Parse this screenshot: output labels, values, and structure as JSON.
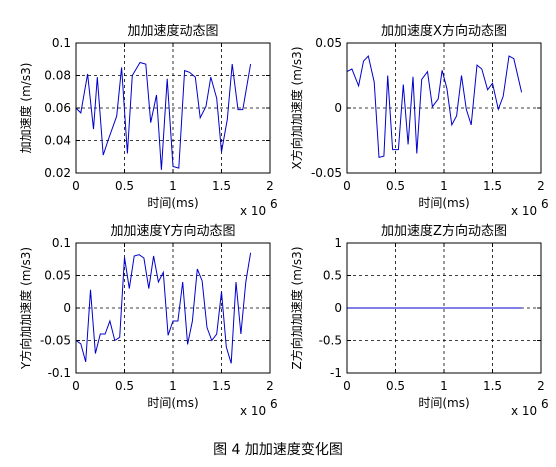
{
  "caption": "图 4  加加速度变化图",
  "chart_data": [
    {
      "type": "line",
      "title": "加加速度动态图",
      "xlabel": "时间(ms)",
      "ylabel": "加加速度 (m/s3)",
      "x_multiplier_label": "x 10",
      "x_multiplier_exp": "6",
      "xlim": [
        0,
        2
      ],
      "ylim": [
        0.02,
        0.1
      ],
      "xticks": [
        "0",
        "0.5",
        "1",
        "1.5",
        "2"
      ],
      "yticks": [
        "0.02",
        "0.04",
        "0.06",
        "0.08",
        "0.1"
      ],
      "grid": true,
      "line_color": "#0000cc",
      "series": [
        {
          "x": [
            0,
            0.05,
            0.12,
            0.18,
            0.22,
            0.28,
            0.33,
            0.42,
            0.47,
            0.53,
            0.58,
            0.66,
            0.72,
            0.77,
            0.83,
            0.88,
            0.94,
            1.0,
            1.06,
            1.12,
            1.17,
            1.23,
            1.28,
            1.34,
            1.39,
            1.45,
            1.5,
            1.56,
            1.61,
            1.67,
            1.72,
            1.8
          ],
          "y": [
            0.06,
            0.057,
            0.081,
            0.047,
            0.079,
            0.031,
            0.04,
            0.055,
            0.085,
            0.032,
            0.08,
            0.088,
            0.087,
            0.051,
            0.068,
            0.022,
            0.078,
            0.024,
            0.023,
            0.083,
            0.082,
            0.079,
            0.054,
            0.061,
            0.079,
            0.066,
            0.033,
            0.053,
            0.087,
            0.059,
            0.059,
            0.087
          ]
        }
      ]
    },
    {
      "type": "line",
      "title": "加加速度X方向动态图",
      "xlabel": "时间(ms)",
      "ylabel": "X方向加加速度 (m/s3)",
      "x_multiplier_label": "x 10",
      "x_multiplier_exp": "6",
      "xlim": [
        0,
        2
      ],
      "ylim": [
        -0.05,
        0.05
      ],
      "xticks": [
        "0",
        "0.5",
        "1",
        "1.5",
        "2"
      ],
      "yticks": [
        "-0.05",
        "0",
        "0.05"
      ],
      "grid": true,
      "line_color": "#0000cc",
      "series": [
        {
          "x": [
            0,
            0.05,
            0.12,
            0.17,
            0.22,
            0.28,
            0.33,
            0.38,
            0.42,
            0.47,
            0.53,
            0.58,
            0.63,
            0.68,
            0.72,
            0.77,
            0.83,
            0.88,
            0.94,
            0.98,
            1.03,
            1.08,
            1.13,
            1.18,
            1.23,
            1.28,
            1.34,
            1.39,
            1.45,
            1.5,
            1.56,
            1.61,
            1.67,
            1.72,
            1.8
          ],
          "y": [
            0.028,
            0.03,
            0.017,
            0.036,
            0.04,
            0.02,
            -0.038,
            -0.037,
            0.025,
            -0.032,
            -0.032,
            0.018,
            -0.028,
            0.024,
            -0.035,
            0.022,
            0.028,
            0.001,
            0.007,
            0.029,
            0.015,
            -0.013,
            -0.006,
            0.025,
            -0.001,
            -0.013,
            0.033,
            0.03,
            0.014,
            0.019,
            -0.001,
            0.009,
            0.04,
            0.038,
            0.012
          ]
        }
      ]
    },
    {
      "type": "line",
      "title": "加加速度Y方向动态图",
      "xlabel": "时间(ms)",
      "ylabel": "Y方向加加速度 (m/s3)",
      "x_multiplier_label": "x 10",
      "x_multiplier_exp": "6",
      "xlim": [
        0,
        2
      ],
      "ylim": [
        -0.1,
        0.1
      ],
      "xticks": [
        "0",
        "0.5",
        "1",
        "1.5",
        "2"
      ],
      "yticks": [
        "-0.1",
        "-0.05",
        "0",
        "0.05",
        "0.1"
      ],
      "grid": true,
      "line_color": "#0000cc",
      "series": [
        {
          "x": [
            0,
            0.05,
            0.1,
            0.15,
            0.2,
            0.25,
            0.3,
            0.35,
            0.4,
            0.45,
            0.5,
            0.55,
            0.6,
            0.65,
            0.7,
            0.75,
            0.8,
            0.85,
            0.9,
            0.95,
            1.0,
            1.05,
            1.1,
            1.15,
            1.2,
            1.25,
            1.3,
            1.35,
            1.4,
            1.45,
            1.5,
            1.55,
            1.6,
            1.65,
            1.7,
            1.75,
            1.8
          ],
          "y": [
            -0.05,
            -0.055,
            -0.083,
            0.028,
            -0.07,
            -0.04,
            -0.04,
            -0.02,
            -0.05,
            -0.045,
            0.078,
            0.03,
            0.08,
            0.082,
            0.077,
            0.03,
            0.08,
            0.04,
            0.055,
            -0.042,
            -0.02,
            -0.02,
            0.04,
            -0.056,
            -0.02,
            0.06,
            0.042,
            -0.03,
            -0.05,
            -0.04,
            0.025,
            -0.06,
            -0.085,
            0.04,
            -0.04,
            0.04,
            0.085
          ]
        }
      ]
    },
    {
      "type": "line",
      "title": "加加速度Z方向动态图",
      "xlabel": "时间(ms)",
      "ylabel": "Z方向加加速度 (m/s3)",
      "x_multiplier_label": "x 10",
      "x_multiplier_exp": "6",
      "xlim": [
        0,
        2
      ],
      "ylim": [
        -1,
        1
      ],
      "xticks": [
        "0",
        "0.5",
        "1",
        "1.5",
        "2"
      ],
      "yticks": [
        "-1",
        "-0.5",
        "0",
        "0.5",
        "1"
      ],
      "grid": true,
      "line_color": "#0000cc",
      "series": [
        {
          "x": [
            0,
            1.8
          ],
          "y": [
            0,
            0
          ]
        }
      ]
    }
  ]
}
